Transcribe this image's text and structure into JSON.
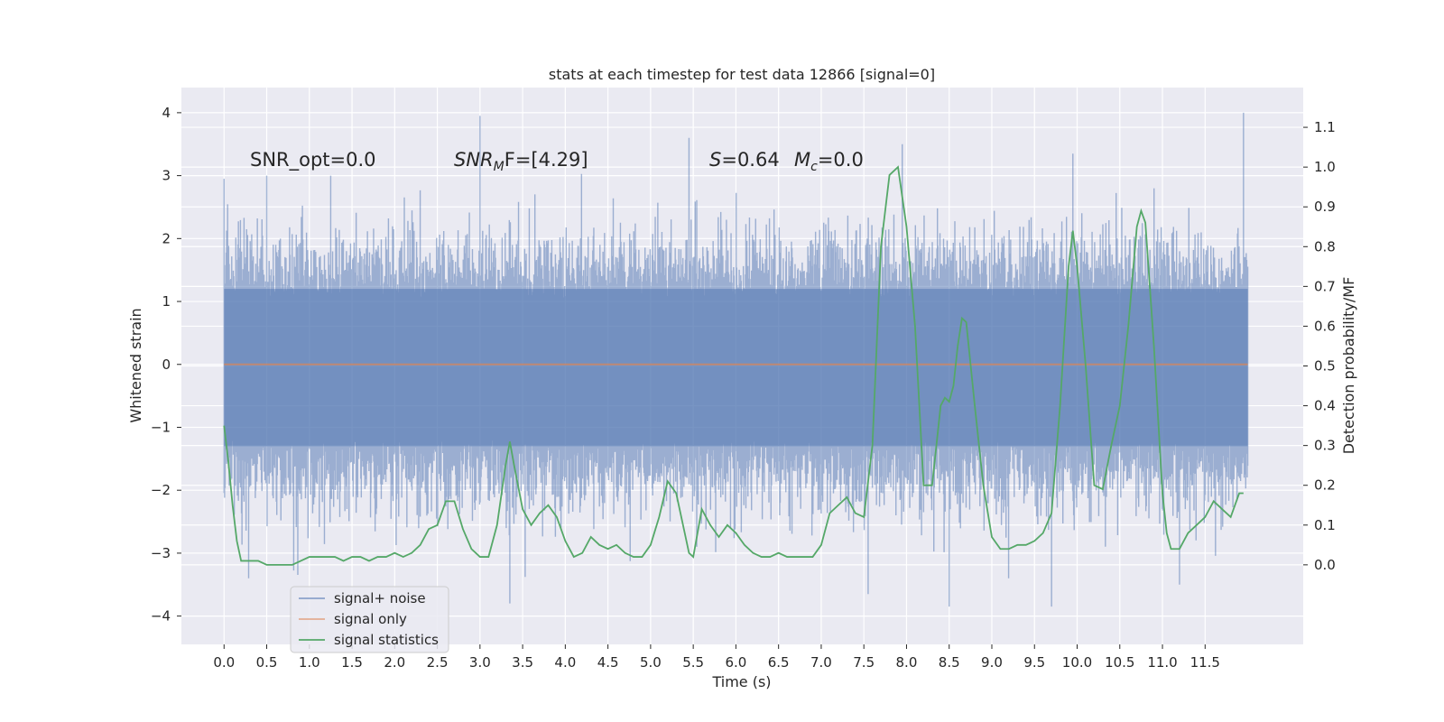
{
  "chart_data": {
    "type": "line",
    "title": "stats at each timestep for test data 12866 [signal=0]",
    "xlabel": "Time (s)",
    "ylabel_left": "Whitened strain",
    "ylabel_right": "Detection probability/MF",
    "xlim": [
      -0.5,
      12.65
    ],
    "ylim_left": [
      -4.45,
      4.4
    ],
    "ylim_right": [
      -0.2,
      1.2
    ],
    "x_ticks": [
      0.0,
      0.5,
      1.0,
      1.5,
      2.0,
      2.5,
      3.0,
      3.5,
      4.0,
      4.5,
      5.0,
      5.5,
      6.0,
      6.5,
      7.0,
      7.5,
      8.0,
      8.5,
      9.0,
      9.5,
      10.0,
      10.5,
      11.0,
      11.5
    ],
    "x_tick_labels": [
      "0.0",
      "0.5",
      "1.0",
      "1.5",
      "2.0",
      "2.5",
      "3.0",
      "3.5",
      "4.0",
      "4.5",
      "5.0",
      "5.5",
      "6.0",
      "6.5",
      "7.0",
      "7.5",
      "8.0",
      "8.5",
      "9.0",
      "9.5",
      "10.0",
      "10.5",
      "11.0",
      "11.5"
    ],
    "y_left_ticks": [
      4,
      3,
      2,
      1,
      0,
      -1,
      -2,
      -3,
      -4
    ],
    "y_left_tick_labels": [
      "4",
      "3",
      "2",
      "1",
      "0",
      "−1",
      "−2",
      "−3",
      "−4"
    ],
    "y_right_ticks": [
      1.1,
      1.0,
      0.9,
      0.8,
      0.7,
      0.6,
      0.5,
      0.4,
      0.3,
      0.2,
      0.1,
      0.0
    ],
    "y_right_tick_labels": [
      "1.1",
      "1.0",
      "0.9",
      "0.8",
      "0.7",
      "0.6",
      "0.5",
      "0.4",
      "0.3",
      "0.2",
      "0.1",
      "0.0"
    ],
    "grid": true,
    "legend_position": "lower-left",
    "annotations": {
      "snr_opt": "SNR_opt=0.0",
      "snr_mf_prefix": "SNR",
      "snr_mf_sub": "M",
      "snr_mf_suffix": "F=[4.29]",
      "s_prefix": "S",
      "s_value": "=0.64",
      "mc_prefix": "M",
      "mc_sub": "c",
      "mc_value": "=0.0"
    },
    "series": [
      {
        "name": "signal+ noise",
        "color": "#4c72b0",
        "axis": "left",
        "style": "noise band",
        "time_range": [
          0.0,
          12.0
        ],
        "core_range": [
          -1.3,
          1.2
        ],
        "peak_values": [
          {
            "x": 0.0,
            "y": 2.95
          },
          {
            "x": 0.5,
            "y": 3.0
          },
          {
            "x": 1.25,
            "y": 3.0
          },
          {
            "x": 3.0,
            "y": 3.95
          },
          {
            "x": 5.45,
            "y": 3.6
          },
          {
            "x": 7.95,
            "y": 3.5
          },
          {
            "x": 9.95,
            "y": 3.35
          },
          {
            "x": 11.95,
            "y": 4.0
          },
          {
            "x": 3.35,
            "y": -3.8
          },
          {
            "x": 7.55,
            "y": -3.65
          },
          {
            "x": 8.5,
            "y": -3.85
          },
          {
            "x": 9.7,
            "y": -3.85
          },
          {
            "x": 11.2,
            "y": -3.5
          }
        ]
      },
      {
        "name": "signal only",
        "color": "#dd8452",
        "axis": "left",
        "x": [
          0.0,
          12.0
        ],
        "y": [
          0.0,
          0.0
        ]
      },
      {
        "name": "signal statistics",
        "color": "#55a868",
        "axis": "right",
        "x": [
          0.0,
          0.05,
          0.1,
          0.15,
          0.2,
          0.25,
          0.3,
          0.4,
          0.5,
          0.6,
          0.7,
          0.8,
          0.9,
          1.0,
          1.1,
          1.2,
          1.3,
          1.4,
          1.5,
          1.6,
          1.7,
          1.8,
          1.9,
          2.0,
          2.1,
          2.2,
          2.3,
          2.4,
          2.5,
          2.6,
          2.7,
          2.8,
          2.9,
          3.0,
          3.1,
          3.2,
          3.3,
          3.35,
          3.4,
          3.5,
          3.6,
          3.7,
          3.8,
          3.9,
          4.0,
          4.1,
          4.2,
          4.3,
          4.4,
          4.5,
          4.6,
          4.7,
          4.8,
          4.9,
          5.0,
          5.1,
          5.2,
          5.3,
          5.4,
          5.45,
          5.5,
          5.6,
          5.7,
          5.8,
          5.9,
          6.0,
          6.1,
          6.2,
          6.3,
          6.4,
          6.5,
          6.6,
          6.7,
          6.8,
          6.9,
          7.0,
          7.1,
          7.2,
          7.3,
          7.4,
          7.5,
          7.6,
          7.65,
          7.7,
          7.8,
          7.9,
          8.0,
          8.1,
          8.15,
          8.2,
          8.3,
          8.4,
          8.45,
          8.5,
          8.55,
          8.6,
          8.65,
          8.7,
          8.8,
          8.9,
          9.0,
          9.1,
          9.2,
          9.3,
          9.4,
          9.5,
          9.6,
          9.7,
          9.8,
          9.9,
          9.95,
          10.0,
          10.1,
          10.2,
          10.3,
          10.4,
          10.5,
          10.6,
          10.7,
          10.75,
          10.8,
          10.9,
          11.0,
          11.05,
          11.1,
          11.2,
          11.3,
          11.4,
          11.5,
          11.6,
          11.7,
          11.8,
          11.9,
          11.95
        ],
        "y": [
          0.35,
          0.26,
          0.15,
          0.06,
          0.01,
          0.01,
          0.01,
          0.01,
          0.0,
          0.0,
          0.0,
          0.0,
          0.01,
          0.02,
          0.02,
          0.02,
          0.02,
          0.01,
          0.02,
          0.02,
          0.01,
          0.02,
          0.02,
          0.03,
          0.02,
          0.03,
          0.05,
          0.09,
          0.1,
          0.16,
          0.16,
          0.09,
          0.04,
          0.02,
          0.02,
          0.1,
          0.25,
          0.31,
          0.25,
          0.14,
          0.1,
          0.13,
          0.15,
          0.12,
          0.06,
          0.02,
          0.03,
          0.07,
          0.05,
          0.04,
          0.05,
          0.03,
          0.02,
          0.02,
          0.05,
          0.12,
          0.21,
          0.18,
          0.08,
          0.03,
          0.02,
          0.14,
          0.1,
          0.07,
          0.1,
          0.08,
          0.05,
          0.03,
          0.02,
          0.02,
          0.03,
          0.02,
          0.02,
          0.02,
          0.02,
          0.05,
          0.13,
          0.15,
          0.17,
          0.13,
          0.12,
          0.3,
          0.55,
          0.8,
          0.98,
          1.0,
          0.85,
          0.6,
          0.4,
          0.2,
          0.2,
          0.4,
          0.42,
          0.41,
          0.45,
          0.55,
          0.62,
          0.61,
          0.4,
          0.2,
          0.07,
          0.04,
          0.04,
          0.05,
          0.05,
          0.06,
          0.08,
          0.13,
          0.4,
          0.75,
          0.84,
          0.75,
          0.5,
          0.2,
          0.19,
          0.3,
          0.4,
          0.6,
          0.85,
          0.89,
          0.86,
          0.55,
          0.18,
          0.08,
          0.04,
          0.04,
          0.08,
          0.1,
          0.12,
          0.16,
          0.14,
          0.12,
          0.18,
          0.18
        ]
      }
    ]
  }
}
